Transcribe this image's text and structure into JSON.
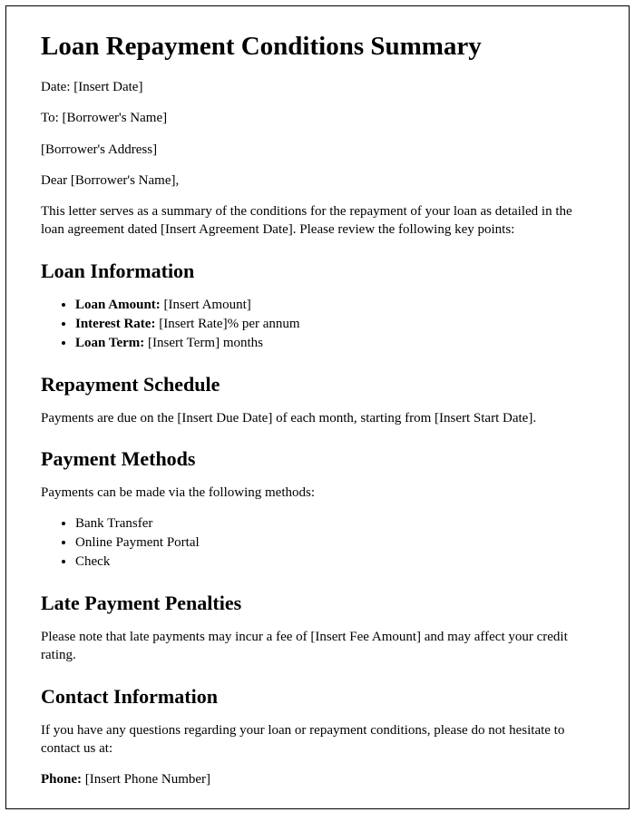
{
  "title": "Loan Repayment Conditions Summary",
  "date_line": "Date: [Insert Date]",
  "to_line": "To: [Borrower's Name]",
  "address_line": "[Borrower's Address]",
  "salutation": "Dear [Borrower's Name],",
  "intro": "This letter serves as a summary of the conditions for the repayment of your loan as detailed in the loan agreement dated [Insert Agreement Date]. Please review the following key points:",
  "sections": {
    "loan_info": {
      "heading": "Loan Information",
      "items": [
        {
          "label": "Loan Amount:",
          "value": " [Insert Amount]"
        },
        {
          "label": "Interest Rate:",
          "value": " [Insert Rate]% per annum"
        },
        {
          "label": "Loan Term:",
          "value": " [Insert Term] months"
        }
      ]
    },
    "repayment": {
      "heading": "Repayment Schedule",
      "text": "Payments are due on the [Insert Due Date] of each month, starting from [Insert Start Date]."
    },
    "payment_methods": {
      "heading": "Payment Methods",
      "intro": "Payments can be made via the following methods:",
      "items": [
        "Bank Transfer",
        "Online Payment Portal",
        "Check"
      ]
    },
    "late_penalties": {
      "heading": "Late Payment Penalties",
      "text": "Please note that late payments may incur a fee of [Insert Fee Amount] and may affect your credit rating."
    },
    "contact": {
      "heading": "Contact Information",
      "intro": "If you have any questions regarding your loan or repayment conditions, please do not hesitate to contact us at:",
      "phone_label": "Phone:",
      "phone_value": " [Insert Phone Number]"
    }
  }
}
